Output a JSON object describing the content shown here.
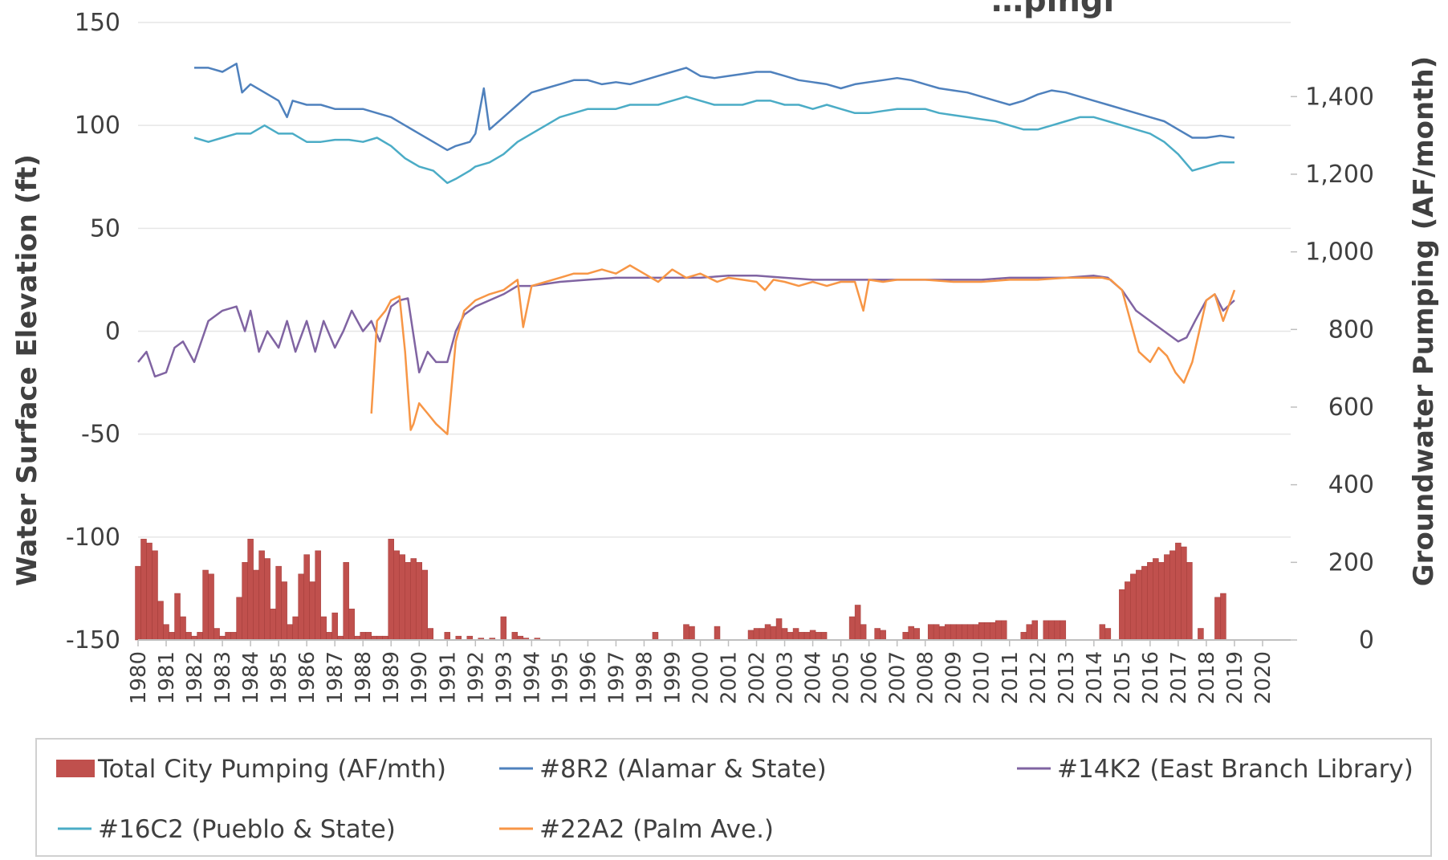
{
  "chart_data": {
    "type": "line",
    "title": "…pingi",
    "ylabel_left": "Water Surface Elevation (ft)",
    "ylabel_right": "Groundwater Pumping (AF/month)",
    "ylim_left": [
      -150,
      150
    ],
    "yticks_left": [
      "150",
      "100",
      "50",
      "0",
      "-50",
      "-100",
      "-150"
    ],
    "yticks_left_values": [
      150,
      100,
      50,
      0,
      -50,
      -100,
      -150
    ],
    "ylim_right": [
      0,
      1400
    ],
    "yticks_right": [
      "1,400",
      "1,200",
      "1,000",
      "800",
      "600",
      "400",
      "200",
      "0"
    ],
    "yticks_right_values": [
      1400,
      1200,
      1000,
      800,
      600,
      400,
      200,
      0
    ],
    "xlim": [
      1980,
      2021
    ],
    "xticks": [
      "1980",
      "1981",
      "1982",
      "1983",
      "1984",
      "1985",
      "1986",
      "1987",
      "1988",
      "1989",
      "1990",
      "1991",
      "1992",
      "1993",
      "1994",
      "1995",
      "1996",
      "1997",
      "1998",
      "1999",
      "2000",
      "2001",
      "2002",
      "2003",
      "2004",
      "2005",
      "2006",
      "2007",
      "2008",
      "2009",
      "2010",
      "2011",
      "2012",
      "2013",
      "2014",
      "2015",
      "2016",
      "2017",
      "2018",
      "2019",
      "2020"
    ],
    "grid": "horizontal",
    "legend_position": "bottom",
    "bar_series": {
      "name": "Total City Pumping (AF/mth)",
      "color": "#c0504d",
      "axis": "right",
      "x": [
        1980.0,
        1980.2,
        1980.4,
        1980.6,
        1980.8,
        1981.0,
        1981.2,
        1981.4,
        1981.6,
        1981.8,
        1982.0,
        1982.2,
        1982.4,
        1982.6,
        1982.8,
        1983.0,
        1983.2,
        1983.4,
        1983.6,
        1983.8,
        1984.0,
        1984.2,
        1984.4,
        1984.6,
        1984.8,
        1985.0,
        1985.2,
        1985.4,
        1985.6,
        1985.8,
        1986.0,
        1986.2,
        1986.4,
        1986.6,
        1986.8,
        1987.0,
        1987.2,
        1987.4,
        1987.6,
        1987.8,
        1988.0,
        1988.2,
        1988.4,
        1988.6,
        1988.8,
        1989.0,
        1989.2,
        1989.4,
        1989.6,
        1989.8,
        1990.0,
        1990.2,
        1990.4,
        1990.6,
        1990.8,
        1991.0,
        1991.4,
        1991.8,
        1992.2,
        1992.6,
        1993.0,
        1993.4,
        1993.6,
        1993.8,
        1994.2,
        1994.6,
        1998.4,
        1999.5,
        1999.7,
        2000.6,
        2001.8,
        2002.0,
        2002.2,
        2002.4,
        2002.6,
        2002.8,
        2003.0,
        2003.2,
        2003.4,
        2003.6,
        2003.8,
        2004.0,
        2004.2,
        2004.4,
        2005.4,
        2005.6,
        2005.8,
        2006.3,
        2006.5,
        2007.3,
        2007.5,
        2007.7,
        2008.2,
        2008.4,
        2008.6,
        2008.8,
        2009.0,
        2009.2,
        2009.4,
        2009.6,
        2009.8,
        2010.0,
        2010.2,
        2010.4,
        2010.6,
        2010.8,
        2011.5,
        2011.7,
        2011.9,
        2012.3,
        2012.5,
        2012.7,
        2012.9,
        2013.1,
        2014.3,
        2014.5,
        2015.0,
        2015.2,
        2015.4,
        2015.6,
        2015.8,
        2016.0,
        2016.2,
        2016.4,
        2016.6,
        2016.8,
        2017.0,
        2017.2,
        2017.4,
        2017.6,
        2017.8,
        2018.0,
        2018.2,
        2018.4,
        2018.6
      ],
      "values": [
        190,
        260,
        250,
        230,
        100,
        40,
        20,
        120,
        60,
        20,
        10,
        20,
        180,
        170,
        30,
        10,
        20,
        20,
        110,
        200,
        260,
        180,
        230,
        210,
        80,
        190,
        150,
        40,
        60,
        170,
        220,
        150,
        230,
        60,
        20,
        70,
        10,
        200,
        80,
        10,
        20,
        20,
        10,
        10,
        10,
        260,
        230,
        220,
        200,
        210,
        200,
        180,
        30,
        0,
        0,
        20,
        10,
        10,
        5,
        5,
        60,
        20,
        10,
        5,
        5,
        0,
        20,
        40,
        35,
        35,
        25,
        30,
        30,
        40,
        35,
        55,
        30,
        20,
        30,
        20,
        20,
        25,
        20,
        20,
        60,
        90,
        40,
        30,
        25,
        20,
        35,
        30,
        40,
        40,
        35,
        40,
        40,
        40,
        40,
        40,
        40,
        45,
        45,
        45,
        50,
        50,
        20,
        40,
        50,
        50,
        50,
        50,
        50,
        0,
        40,
        30,
        130,
        150,
        170,
        180,
        190,
        200,
        210,
        200,
        220,
        230,
        250,
        240,
        200,
        0,
        30,
        0,
        0,
        110,
        120
      ]
    },
    "series": [
      {
        "name": "#8R2 (Alamar & State)",
        "color": "#4f81bd",
        "axis": "left",
        "x": [
          1982.0,
          1982.5,
          1983.0,
          1983.5,
          1983.7,
          1984.0,
          1984.5,
          1985.0,
          1985.3,
          1985.5,
          1986.0,
          1986.5,
          1987.0,
          1987.5,
          1988.0,
          1988.5,
          1989.0,
          1989.5,
          1990.0,
          1990.5,
          1991.0,
          1991.3,
          1991.8,
          1992.0,
          1992.3,
          1992.5,
          1993.0,
          1993.5,
          1994.0,
          1994.5,
          1995.0,
          1995.5,
          1996.0,
          1996.5,
          1997.0,
          1997.5,
          1998.0,
          1998.5,
          1999.0,
          1999.5,
          2000.0,
          2000.5,
          2001.0,
          2001.5,
          2002.0,
          2002.5,
          2003.0,
          2003.5,
          2004.0,
          2004.5,
          2005.0,
          2005.5,
          2006.0,
          2006.5,
          2007.0,
          2007.5,
          2008.0,
          2008.5,
          2009.0,
          2009.5,
          2010.0,
          2010.5,
          2011.0,
          2011.5,
          2012.0,
          2012.5,
          2013.0,
          2013.5,
          2014.0,
          2014.5,
          2015.0,
          2015.5,
          2016.0,
          2016.5,
          2017.0,
          2017.5,
          2018.0,
          2018.5,
          2019.0
        ],
        "values": [
          128,
          128,
          126,
          130,
          116,
          120,
          116,
          112,
          104,
          112,
          110,
          110,
          108,
          108,
          108,
          106,
          104,
          100,
          96,
          92,
          88,
          90,
          92,
          96,
          118,
          98,
          104,
          110,
          116,
          118,
          120,
          122,
          122,
          120,
          121,
          120,
          122,
          124,
          126,
          128,
          124,
          123,
          124,
          125,
          126,
          126,
          124,
          122,
          121,
          120,
          118,
          120,
          121,
          122,
          123,
          122,
          120,
          118,
          117,
          116,
          114,
          112,
          110,
          112,
          115,
          117,
          116,
          114,
          112,
          110,
          108,
          106,
          104,
          102,
          98,
          94,
          94,
          95,
          94
        ]
      },
      {
        "name": "#14K2 (East Branch Library)",
        "color": "#8064a2",
        "axis": "left",
        "x": [
          1980.0,
          1980.3,
          1980.6,
          1981.0,
          1981.3,
          1981.6,
          1982.0,
          1982.5,
          1983.0,
          1983.5,
          1983.8,
          1984.0,
          1984.3,
          1984.6,
          1985.0,
          1985.3,
          1985.6,
          1986.0,
          1986.3,
          1986.6,
          1987.0,
          1987.3,
          1987.6,
          1988.0,
          1988.3,
          1988.6,
          1989.0,
          1989.3,
          1989.6,
          1990.0,
          1990.3,
          1990.6,
          1991.0,
          1991.3,
          1991.6,
          1992.0,
          1993.0,
          1993.5,
          1994.0,
          1995.0,
          1996.0,
          1997.0,
          1998.0,
          1999.0,
          2000.0,
          2001.0,
          2002.0,
          2003.0,
          2004.0,
          2005.0,
          2006.0,
          2007.0,
          2008.0,
          2009.0,
          2010.0,
          2011.0,
          2012.0,
          2013.0,
          2014.0,
          2014.5,
          2015.0,
          2015.5,
          2016.0,
          2016.5,
          2017.0,
          2017.3,
          2017.6,
          2018.0,
          2018.3,
          2018.6,
          2019.0
        ],
        "values": [
          -15,
          -10,
          -22,
          -20,
          -8,
          -5,
          -15,
          5,
          10,
          12,
          0,
          10,
          -10,
          0,
          -8,
          5,
          -10,
          5,
          -10,
          5,
          -8,
          0,
          10,
          0,
          5,
          -5,
          12,
          15,
          16,
          -20,
          -10,
          -15,
          -15,
          0,
          8,
          12,
          18,
          22,
          22,
          24,
          25,
          26,
          26,
          26,
          26,
          27,
          27,
          26,
          25,
          25,
          25,
          25,
          25,
          25,
          25,
          26,
          26,
          26,
          27,
          26,
          20,
          10,
          5,
          0,
          -5,
          -3,
          5,
          15,
          18,
          10,
          15
        ]
      },
      {
        "name": "#16C2 (Pueblo & State)",
        "color": "#4bacc6",
        "axis": "left",
        "x": [
          1982.0,
          1982.5,
          1983.0,
          1983.5,
          1984.0,
          1984.5,
          1985.0,
          1985.5,
          1986.0,
          1986.5,
          1987.0,
          1987.5,
          1988.0,
          1988.5,
          1989.0,
          1989.5,
          1990.0,
          1990.5,
          1991.0,
          1991.3,
          1991.8,
          1992.0,
          1992.5,
          1993.0,
          1993.5,
          1994.0,
          1994.5,
          1995.0,
          1995.5,
          1996.0,
          1996.5,
          1997.0,
          1997.5,
          1998.0,
          1998.5,
          1999.0,
          1999.5,
          2000.0,
          2000.5,
          2001.0,
          2001.5,
          2002.0,
          2002.5,
          2003.0,
          2003.5,
          2004.0,
          2004.5,
          2005.0,
          2005.5,
          2006.0,
          2006.5,
          2007.0,
          2007.5,
          2008.0,
          2008.5,
          2009.0,
          2009.5,
          2010.0,
          2010.5,
          2011.0,
          2011.5,
          2012.0,
          2012.5,
          2013.0,
          2013.5,
          2014.0,
          2014.5,
          2015.0,
          2015.5,
          2016.0,
          2016.5,
          2017.0,
          2017.5,
          2018.0,
          2018.5,
          2019.0
        ],
        "values": [
          94,
          92,
          94,
          96,
          96,
          100,
          96,
          96,
          92,
          92,
          93,
          93,
          92,
          94,
          90,
          84,
          80,
          78,
          72,
          74,
          78,
          80,
          82,
          86,
          92,
          96,
          100,
          104,
          106,
          108,
          108,
          108,
          110,
          110,
          110,
          112,
          114,
          112,
          110,
          110,
          110,
          112,
          112,
          110,
          110,
          108,
          110,
          108,
          106,
          106,
          107,
          108,
          108,
          108,
          106,
          105,
          104,
          103,
          102,
          100,
          98,
          98,
          100,
          102,
          104,
          104,
          102,
          100,
          98,
          96,
          92,
          86,
          78,
          80,
          82,
          82
        ]
      },
      {
        "name": "#22A2 (Palm Ave.)",
        "color": "#f79646",
        "axis": "left",
        "x": [
          1988.3,
          1988.5,
          1988.8,
          1989.0,
          1989.3,
          1989.5,
          1989.7,
          1989.8,
          1990.0,
          1990.3,
          1990.6,
          1991.0,
          1991.3,
          1991.6,
          1992.0,
          1992.5,
          1993.0,
          1993.5,
          1993.7,
          1994.0,
          1995.0,
          1995.5,
          1996.0,
          1996.5,
          1997.0,
          1997.5,
          1998.0,
          1998.5,
          1999.0,
          1999.5,
          2000.0,
          2000.3,
          2000.6,
          2001.0,
          2001.5,
          2002.0,
          2002.3,
          2002.6,
          2003.0,
          2003.5,
          2004.0,
          2004.5,
          2005.0,
          2005.5,
          2005.8,
          2006.0,
          2006.5,
          2007.0,
          2008.0,
          2009.0,
          2010.0,
          2011.0,
          2012.0,
          2013.0,
          2014.0,
          2014.3,
          2014.6,
          2015.0,
          2015.3,
          2015.6,
          2016.0,
          2016.3,
          2016.6,
          2016.9,
          2017.2,
          2017.5,
          2018.0,
          2018.3,
          2018.6,
          2019.0
        ],
        "values": [
          -40,
          5,
          10,
          15,
          17,
          -10,
          -48,
          -45,
          -35,
          -40,
          -45,
          -50,
          -5,
          10,
          15,
          18,
          20,
          25,
          2,
          22,
          26,
          28,
          28,
          30,
          28,
          32,
          28,
          24,
          30,
          26,
          28,
          26,
          24,
          26,
          25,
          24,
          20,
          25,
          24,
          22,
          24,
          22,
          24,
          24,
          10,
          25,
          24,
          25,
          25,
          24,
          24,
          25,
          25,
          26,
          26,
          26,
          25,
          20,
          5,
          -10,
          -15,
          -8,
          -12,
          -20,
          -25,
          -15,
          15,
          18,
          5,
          20
        ]
      }
    ],
    "legend": [
      {
        "label": "Total City Pumping (AF/mth)",
        "kind": "box",
        "color": "#c0504d"
      },
      {
        "label": "#8R2 (Alamar & State)",
        "kind": "line",
        "color": "#4f81bd"
      },
      {
        "label": "#14K2 (East Branch Library)",
        "kind": "line",
        "color": "#8064a2"
      },
      {
        "label": "#16C2 (Pueblo & State)",
        "kind": "line",
        "color": "#4bacc6"
      },
      {
        "label": "#22A2 (Palm Ave.)",
        "kind": "line",
        "color": "#f79646"
      }
    ]
  }
}
